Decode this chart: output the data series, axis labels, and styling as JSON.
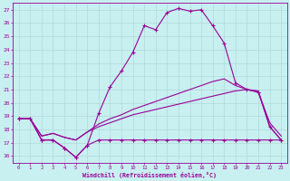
{
  "xlabel": "Windchill (Refroidissement éolien,°C)",
  "bg_color": "#c8f0f0",
  "line_color": "#990099",
  "grid_color": "#b0d8d8",
  "x_ticks": [
    0,
    1,
    2,
    3,
    4,
    5,
    6,
    7,
    8,
    9,
    10,
    11,
    12,
    13,
    14,
    15,
    16,
    17,
    18,
    19,
    20,
    21,
    22,
    23
  ],
  "y_ticks": [
    16,
    17,
    18,
    19,
    20,
    21,
    22,
    23,
    24,
    25,
    26,
    27
  ],
  "ylim": [
    15.5,
    27.5
  ],
  "xlim": [
    -0.5,
    23.5
  ],
  "series": [
    {
      "x": [
        0,
        1,
        2,
        3,
        4,
        5,
        6,
        7,
        8,
        9,
        10,
        11,
        12,
        13,
        14,
        15,
        16,
        17,
        18,
        19,
        20,
        21,
        22,
        23
      ],
      "y": [
        18.8,
        18.8,
        17.2,
        17.2,
        16.6,
        15.9,
        16.8,
        17.2,
        17.2,
        17.2,
        17.2,
        17.2,
        17.2,
        17.2,
        17.2,
        17.2,
        17.2,
        17.2,
        17.2,
        17.2,
        17.2,
        17.2,
        17.2,
        17.2
      ],
      "has_markers": true
    },
    {
      "x": [
        0,
        1,
        2,
        3,
        4,
        5,
        6,
        7,
        8,
        9,
        10,
        11,
        12,
        13,
        14,
        15,
        16,
        17,
        18,
        19,
        20,
        21,
        22,
        23
      ],
      "y": [
        18.8,
        18.8,
        17.5,
        17.7,
        17.4,
        17.2,
        17.8,
        18.2,
        18.5,
        18.8,
        19.1,
        19.3,
        19.5,
        19.7,
        19.9,
        20.1,
        20.3,
        20.5,
        20.7,
        20.9,
        21.0,
        20.9,
        18.2,
        17.2
      ],
      "has_markers": false
    },
    {
      "x": [
        0,
        1,
        2,
        3,
        4,
        5,
        6,
        7,
        8,
        9,
        10,
        11,
        12,
        13,
        14,
        15,
        16,
        17,
        18,
        19,
        20,
        21,
        22,
        23
      ],
      "y": [
        18.8,
        18.8,
        17.5,
        17.7,
        17.4,
        17.2,
        17.8,
        18.4,
        18.8,
        19.1,
        19.5,
        19.8,
        20.1,
        20.4,
        20.7,
        21.0,
        21.3,
        21.6,
        21.8,
        21.3,
        21.0,
        20.8,
        18.5,
        17.5
      ],
      "has_markers": false
    },
    {
      "x": [
        0,
        1,
        2,
        3,
        4,
        5,
        6,
        7,
        8,
        9,
        10,
        11,
        12,
        13,
        14,
        15,
        16,
        17,
        18,
        19,
        20,
        21,
        22,
        23
      ],
      "y": [
        18.8,
        18.8,
        17.2,
        17.2,
        16.6,
        15.9,
        16.8,
        19.2,
        21.2,
        22.4,
        23.8,
        25.8,
        25.5,
        26.8,
        27.1,
        26.9,
        27.0,
        25.8,
        24.5,
        21.5,
        21.0,
        20.8,
        18.2,
        17.2
      ],
      "has_markers": true
    }
  ]
}
